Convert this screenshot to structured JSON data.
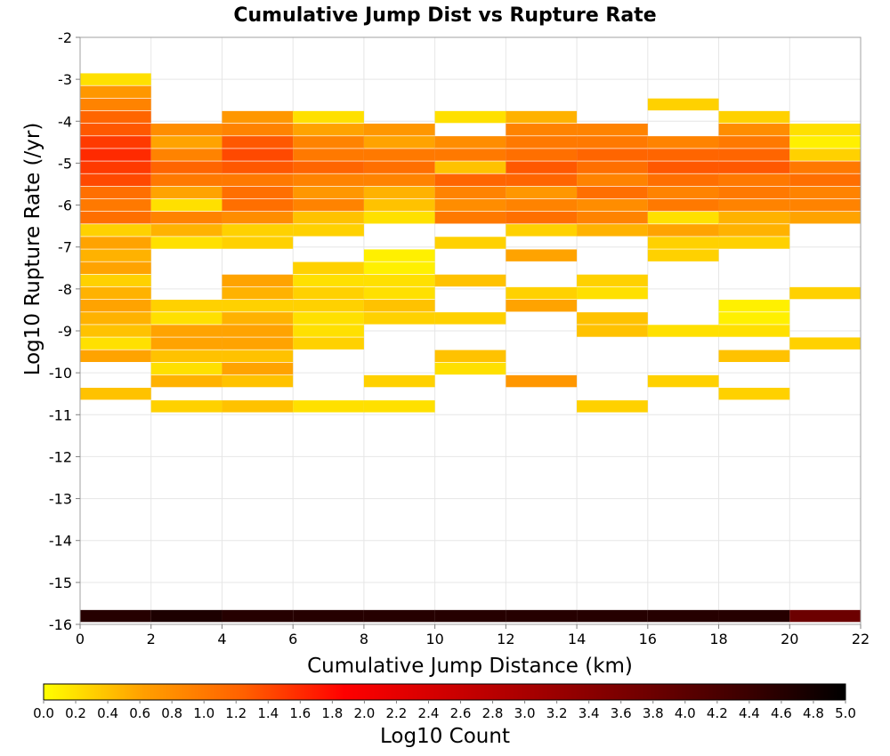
{
  "chart_data": {
    "type": "heatmap",
    "title": "Cumulative Jump Dist vs Rupture Rate",
    "xlabel": "Cumulative Jump Distance (km)",
    "ylabel": "Log10 Rupture Rate (/yr)",
    "xlim": [
      0,
      22
    ],
    "ylim": [
      -16,
      -2
    ],
    "x_ticks": [
      "0",
      "2",
      "4",
      "6",
      "8",
      "10",
      "12",
      "14",
      "16",
      "18",
      "20",
      "22"
    ],
    "y_ticks": [
      "-2",
      "-3",
      "-4",
      "-5",
      "-6",
      "-7",
      "-8",
      "-9",
      "-10",
      "-11",
      "-12",
      "-13",
      "-14",
      "-15",
      "-16"
    ],
    "x_bin_width": 2,
    "y_bin_height": 0.285,
    "grid": true,
    "colorbar": {
      "label": "Log10 Count",
      "range": [
        0,
        5
      ],
      "ticks": [
        "0.0",
        "0.2",
        "0.4",
        "0.6",
        "0.8",
        "1.0",
        "1.2",
        "1.4",
        "1.6",
        "1.8",
        "2.0",
        "2.2",
        "2.4",
        "2.6",
        "2.8",
        "3.0",
        "3.2",
        "3.4",
        "3.6",
        "3.8",
        "4.0",
        "4.2",
        "4.4",
        "4.6",
        "4.8",
        "5.0"
      ],
      "colors": [
        "#ffff00",
        "#ff9f00",
        "#ff6000",
        "#ff0000",
        "#d00000",
        "#a00000",
        "#700000",
        "#3c0000",
        "#000000"
      ]
    },
    "column_data": [
      {
        "x": 0,
        "cells": [
          [
            -3,
            0.2
          ],
          [
            -3.3,
            0.7
          ],
          [
            -3.6,
            0.9
          ],
          [
            -3.9,
            1.2
          ],
          [
            -4.2,
            1.3
          ],
          [
            -4.5,
            1.5
          ],
          [
            -4.8,
            1.6
          ],
          [
            -5.1,
            1.5
          ],
          [
            -5.4,
            1.4
          ],
          [
            -5.7,
            1.1
          ],
          [
            -6,
            1.0
          ],
          [
            -6.3,
            1.1
          ],
          [
            -6.6,
            0.3
          ],
          [
            -6.9,
            0.6
          ],
          [
            -7.2,
            0.5
          ],
          [
            -7.5,
            0.6
          ],
          [
            -7.8,
            0.3
          ],
          [
            -8.1,
            0.5
          ],
          [
            -8.4,
            0.6
          ],
          [
            -8.7,
            0.5
          ],
          [
            -9,
            0.4
          ],
          [
            -9.3,
            0.2
          ],
          [
            -9.6,
            0.6
          ],
          [
            -10.5,
            0.4
          ],
          [
            -15.8,
            4.6
          ]
        ]
      },
      {
        "x": 2,
        "cells": [
          [
            -4.2,
            0.8
          ],
          [
            -4.5,
            0.6
          ],
          [
            -4.8,
            0.9
          ],
          [
            -5.1,
            1.2
          ],
          [
            -5.4,
            1.0
          ],
          [
            -5.7,
            0.6
          ],
          [
            -6,
            0.2
          ],
          [
            -6.3,
            0.9
          ],
          [
            -6.6,
            0.5
          ],
          [
            -6.9,
            0.2
          ],
          [
            -8.4,
            0.3
          ],
          [
            -8.7,
            0.2
          ],
          [
            -9,
            0.6
          ],
          [
            -9.3,
            0.6
          ],
          [
            -9.6,
            0.4
          ],
          [
            -9.9,
            0.2
          ],
          [
            -10.2,
            0.5
          ],
          [
            -10.8,
            0.3
          ],
          [
            -15.8,
            4.7
          ]
        ]
      },
      {
        "x": 4,
        "cells": [
          [
            -3.9,
            0.7
          ],
          [
            -4.2,
            0.9
          ],
          [
            -4.5,
            1.3
          ],
          [
            -4.8,
            1.4
          ],
          [
            -5.1,
            1.3
          ],
          [
            -5.4,
            1.0
          ],
          [
            -5.7,
            1.1
          ],
          [
            -6,
            1.1
          ],
          [
            -6.3,
            0.8
          ],
          [
            -6.6,
            0.3
          ],
          [
            -6.9,
            0.3
          ],
          [
            -7.8,
            0.6
          ],
          [
            -8.1,
            0.5
          ],
          [
            -8.4,
            0.3
          ],
          [
            -8.7,
            0.5
          ],
          [
            -9,
            0.6
          ],
          [
            -9.3,
            0.6
          ],
          [
            -9.6,
            0.4
          ],
          [
            -9.9,
            0.6
          ],
          [
            -10.2,
            0.4
          ],
          [
            -10.8,
            0.4
          ],
          [
            -15.8,
            4.6
          ]
        ]
      },
      {
        "x": 6,
        "cells": [
          [
            -3.9,
            0.2
          ],
          [
            -4.2,
            0.6
          ],
          [
            -4.5,
            0.9
          ],
          [
            -4.8,
            1.0
          ],
          [
            -5.1,
            1.2
          ],
          [
            -5.4,
            0.9
          ],
          [
            -5.7,
            0.7
          ],
          [
            -6,
            0.9
          ],
          [
            -6.3,
            0.4
          ],
          [
            -6.6,
            0.3
          ],
          [
            -7.5,
            0.3
          ],
          [
            -7.8,
            0.2
          ],
          [
            -8.1,
            0.3
          ],
          [
            -8.4,
            0.3
          ],
          [
            -8.7,
            0.2
          ],
          [
            -9,
            0.2
          ],
          [
            -9.3,
            0.3
          ],
          [
            -10.8,
            0.2
          ],
          [
            -15.8,
            4.6
          ]
        ]
      },
      {
        "x": 8,
        "cells": [
          [
            -4.2,
            0.7
          ],
          [
            -4.5,
            0.6
          ],
          [
            -4.8,
            1.0
          ],
          [
            -5.1,
            1.1
          ],
          [
            -5.4,
            0.9
          ],
          [
            -5.7,
            0.5
          ],
          [
            -6,
            0.4
          ],
          [
            -6.3,
            0.2
          ],
          [
            -7.2,
            0.1
          ],
          [
            -7.5,
            0.1
          ],
          [
            -7.8,
            0.2
          ],
          [
            -8.1,
            0.2
          ],
          [
            -8.4,
            0.4
          ],
          [
            -8.7,
            0.3
          ],
          [
            -10.2,
            0.3
          ],
          [
            -10.8,
            0.2
          ],
          [
            -15.8,
            4.6
          ]
        ]
      },
      {
        "x": 10,
        "cells": [
          [
            -3.9,
            0.2
          ],
          [
            -4.5,
            0.8
          ],
          [
            -4.8,
            1.0
          ],
          [
            -5.1,
            0.4
          ],
          [
            -5.4,
            1.2
          ],
          [
            -5.7,
            0.9
          ],
          [
            -6,
            0.8
          ],
          [
            -6.3,
            1.0
          ],
          [
            -6.9,
            0.3
          ],
          [
            -7.8,
            0.4
          ],
          [
            -8.7,
            0.3
          ],
          [
            -9.6,
            0.4
          ],
          [
            -9.9,
            0.2
          ],
          [
            -15.8,
            4.6
          ]
        ]
      },
      {
        "x": 12,
        "cells": [
          [
            -3.9,
            0.5
          ],
          [
            -4.2,
            0.9
          ],
          [
            -4.5,
            1.0
          ],
          [
            -4.8,
            1.1
          ],
          [
            -5.1,
            1.3
          ],
          [
            -5.4,
            1.2
          ],
          [
            -5.7,
            0.7
          ],
          [
            -6,
            0.9
          ],
          [
            -6.3,
            1.1
          ],
          [
            -6.6,
            0.3
          ],
          [
            -7.2,
            0.6
          ],
          [
            -8.1,
            0.3
          ],
          [
            -8.4,
            0.6
          ],
          [
            -10.2,
            0.7
          ],
          [
            -15.8,
            4.6
          ]
        ]
      },
      {
        "x": 14,
        "cells": [
          [
            -4.2,
            0.9
          ],
          [
            -4.5,
            1.0
          ],
          [
            -4.8,
            1.2
          ],
          [
            -5.1,
            1.1
          ],
          [
            -5.4,
            0.9
          ],
          [
            -5.7,
            1.1
          ],
          [
            -6,
            0.8
          ],
          [
            -6.3,
            0.9
          ],
          [
            -6.6,
            0.5
          ],
          [
            -7.8,
            0.3
          ],
          [
            -8.1,
            0.2
          ],
          [
            -8.7,
            0.4
          ],
          [
            -9,
            0.4
          ],
          [
            -10.8,
            0.3
          ],
          [
            -15.8,
            4.6
          ]
        ]
      },
      {
        "x": 16,
        "cells": [
          [
            -3.6,
            0.3
          ],
          [
            -4.5,
            0.9
          ],
          [
            -4.8,
            1.2
          ],
          [
            -5.1,
            1.3
          ],
          [
            -5.4,
            1.1
          ],
          [
            -5.7,
            0.9
          ],
          [
            -6,
            1.0
          ],
          [
            -6.3,
            0.2
          ],
          [
            -6.6,
            0.6
          ],
          [
            -6.9,
            0.3
          ],
          [
            -7.2,
            0.3
          ],
          [
            -9,
            0.2
          ],
          [
            -10.2,
            0.3
          ],
          [
            -15.8,
            4.6
          ]
        ]
      },
      {
        "x": 18,
        "cells": [
          [
            -3.9,
            0.3
          ],
          [
            -4.2,
            0.8
          ],
          [
            -4.5,
            1.0
          ],
          [
            -4.8,
            1.2
          ],
          [
            -5.1,
            1.3
          ],
          [
            -5.4,
            1.0
          ],
          [
            -5.7,
            1.0
          ],
          [
            -6,
            0.9
          ],
          [
            -6.3,
            0.5
          ],
          [
            -6.6,
            0.5
          ],
          [
            -6.9,
            0.3
          ],
          [
            -8.4,
            0.1
          ],
          [
            -8.7,
            0.1
          ],
          [
            -9,
            0.2
          ],
          [
            -9.6,
            0.4
          ],
          [
            -10.5,
            0.3
          ],
          [
            -15.8,
            4.6
          ]
        ]
      },
      {
        "x": 20,
        "cells": [
          [
            -4.2,
            0.2
          ],
          [
            -4.5,
            0.1
          ],
          [
            -4.8,
            0.3
          ],
          [
            -5.1,
            1.0
          ],
          [
            -5.4,
            1.1
          ],
          [
            -5.7,
            0.9
          ],
          [
            -6,
            0.9
          ],
          [
            -6.3,
            0.6
          ],
          [
            -8.1,
            0.3
          ],
          [
            -9.3,
            0.3
          ],
          [
            -15.8,
            3.8
          ]
        ]
      }
    ]
  }
}
